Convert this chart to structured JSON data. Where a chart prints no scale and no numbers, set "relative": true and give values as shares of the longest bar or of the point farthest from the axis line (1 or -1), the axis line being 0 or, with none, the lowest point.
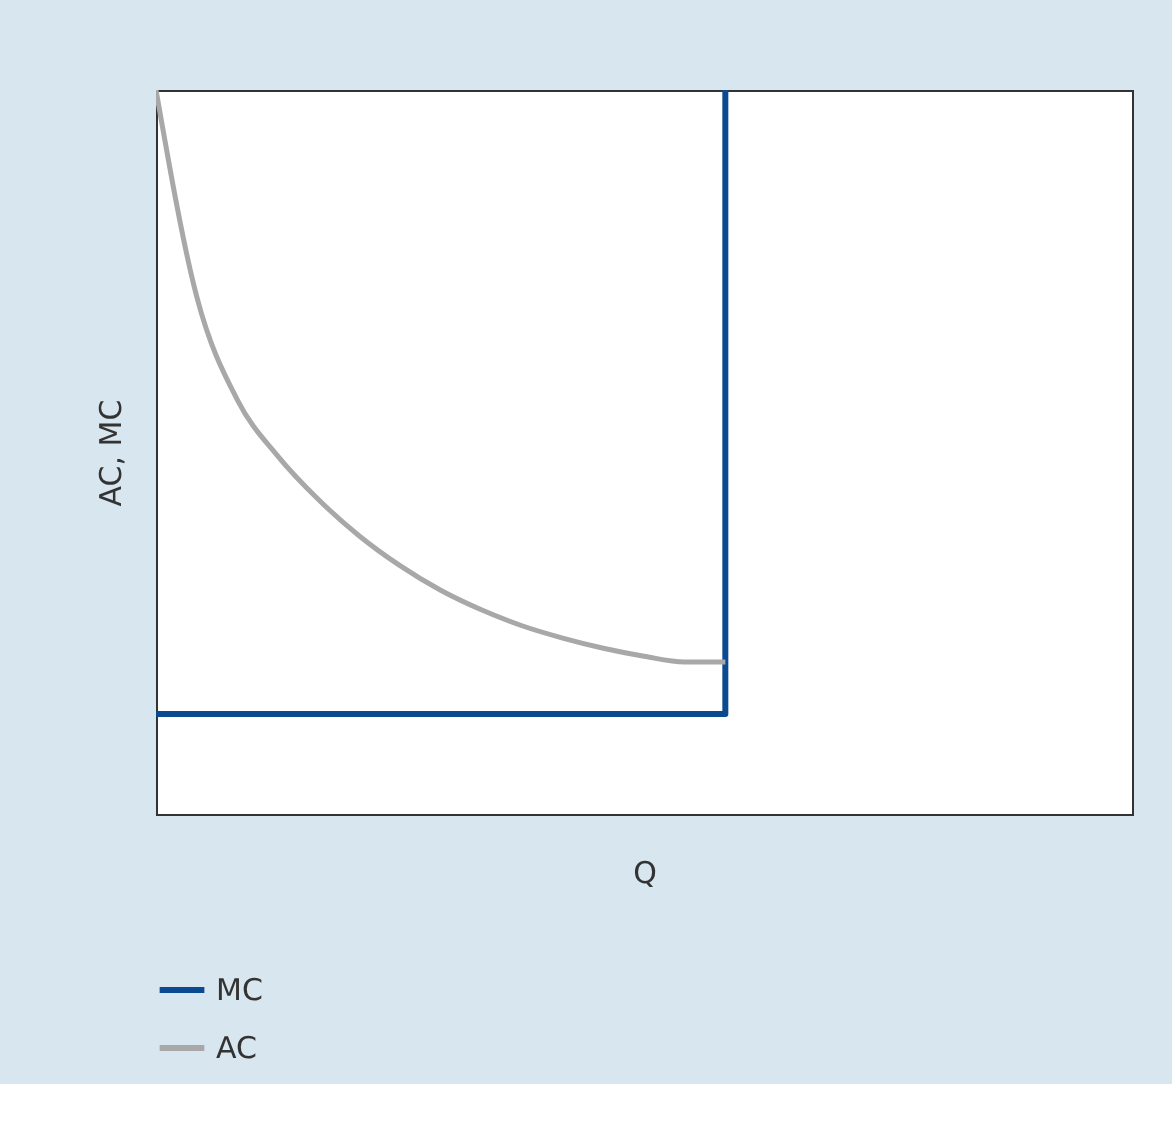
{
  "chart_data": {
    "type": "line",
    "relative": true,
    "xlabel": "Q",
    "ylabel": "AC, MC",
    "categories": [
      null,
      null,
      null,
      null,
      null,
      null,
      null,
      null,
      null,
      null,
      null,
      null,
      null,
      null,
      null,
      null,
      null,
      null,
      null,
      null,
      null,
      null,
      null,
      null,
      null
    ],
    "series": [
      {
        "name": "MC",
        "type": "step",
        "color": "#0b4a90",
        "values": [
          0.138,
          0.138,
          0.138,
          0.138,
          0.138,
          0.138,
          0.138,
          0.138,
          0.138,
          0.138,
          0.138,
          0.138,
          0.138,
          0.138,
          1,
          null,
          null,
          null,
          null,
          null,
          null,
          null,
          null,
          null,
          null
        ]
      },
      {
        "name": "AC",
        "color": "#a8a8a8",
        "values": [
          1,
          0.715,
          0.572,
          0.494,
          0.434,
          0.384,
          0.343,
          0.309,
          0.282,
          0.26,
          0.243,
          0.229,
          0.218,
          0.21,
          0.21,
          null,
          null,
          null,
          null,
          null,
          null,
          null,
          null,
          null,
          null
        ]
      }
    ],
    "grid": false,
    "legend": "bottom left",
    "tick_labels": false
  }
}
